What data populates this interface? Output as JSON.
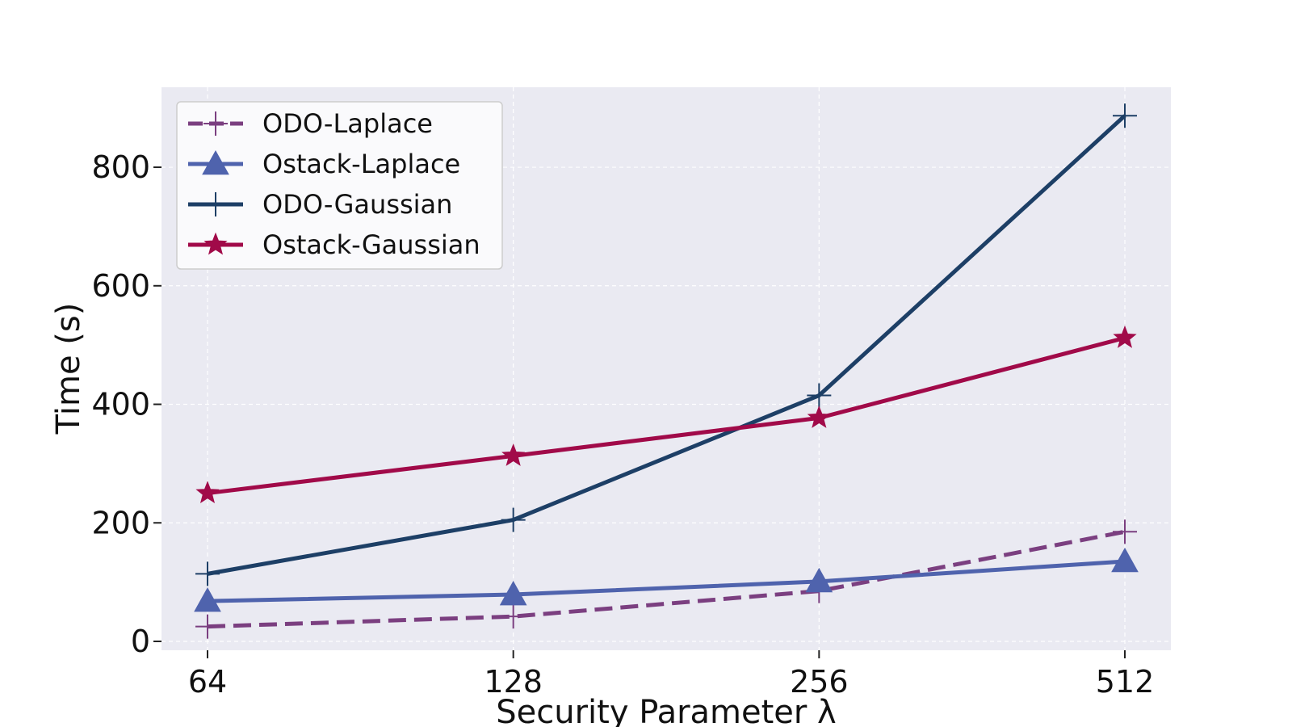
{
  "chart_data": {
    "type": "line",
    "title": "",
    "xlabel": "Security Parameter λ",
    "ylabel": "Time (s)",
    "categories": [
      "64",
      "128",
      "256",
      "512"
    ],
    "ylim": [
      -15,
      935
    ],
    "yticks": [
      0,
      200,
      400,
      600,
      800
    ],
    "grid": true,
    "legend_position": "top-left",
    "background": "#eaeaf2",
    "series": [
      {
        "name": "ODO-Laplace",
        "values": [
          25,
          42,
          85,
          185
        ],
        "color": "#7b3f80",
        "dash": true,
        "marker": "plus"
      },
      {
        "name": "Ostack-Laplace",
        "values": [
          68,
          79,
          101,
          135
        ],
        "color": "#4f63ad",
        "dash": false,
        "marker": "triangle"
      },
      {
        "name": "ODO-Gaussian",
        "values": [
          114,
          205,
          415,
          887
        ],
        "color": "#1d3f66",
        "dash": false,
        "marker": "plus"
      },
      {
        "name": "Ostack-Gaussian",
        "values": [
          250,
          313,
          377,
          512
        ],
        "color": "#a10a49",
        "dash": false,
        "marker": "star"
      }
    ]
  }
}
